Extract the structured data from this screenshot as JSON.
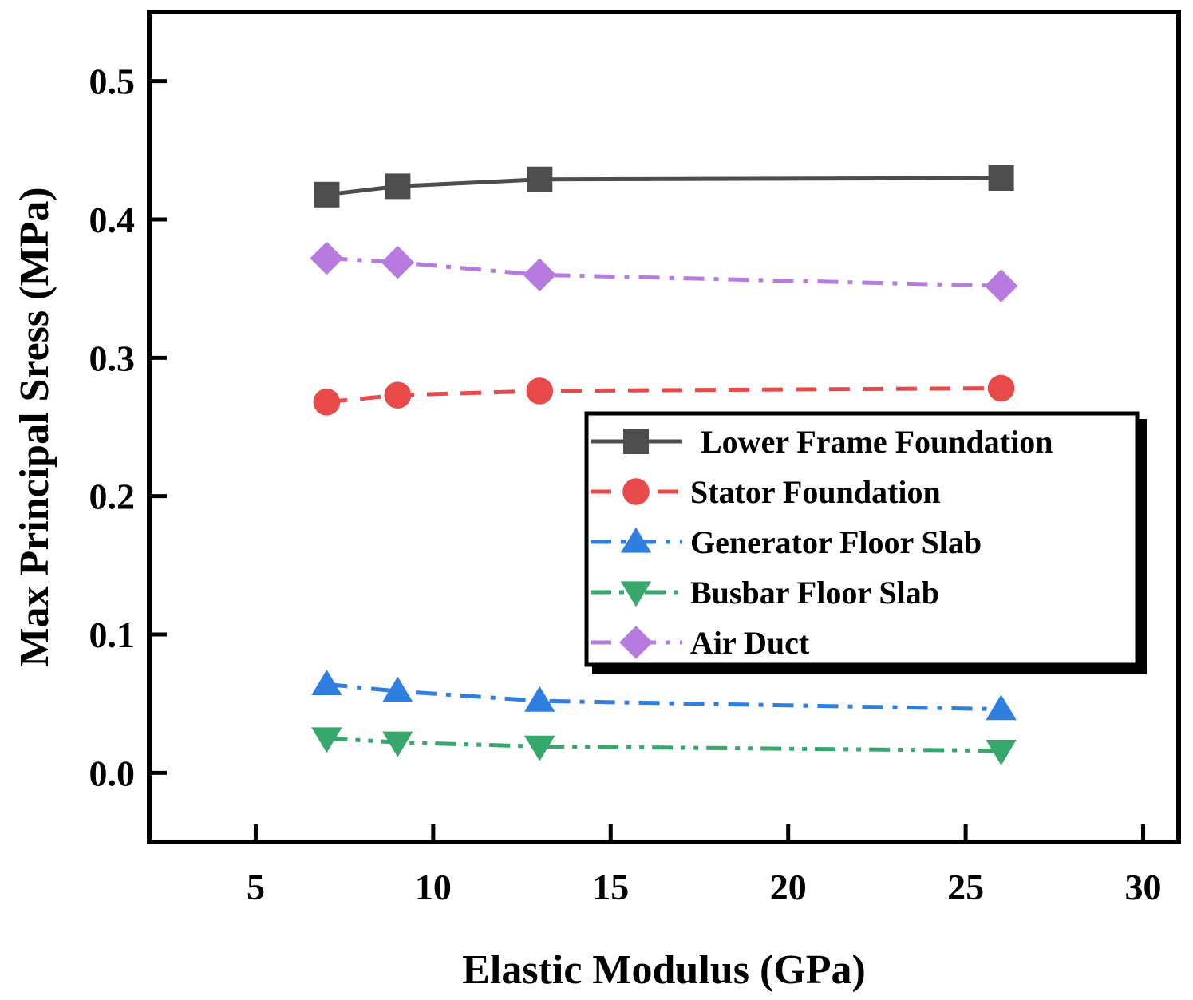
{
  "chart_data": {
    "type": "line",
    "title": "",
    "xlabel": "Elastic Modulus (GPa)",
    "ylabel": "Max Principal Sress (MPa)",
    "xlim": [
      2,
      31
    ],
    "ylim": [
      -0.05,
      0.55
    ],
    "xticks": [
      5,
      10,
      15,
      20,
      25,
      30
    ],
    "yticks": [
      0.0,
      0.1,
      0.2,
      0.3,
      0.4,
      0.5
    ],
    "xtick_labels": [
      "5",
      "10",
      "15",
      "20",
      "25",
      "30"
    ],
    "ytick_labels": [
      "0.0",
      "0.1",
      "0.2",
      "0.3",
      "0.4",
      "0.5"
    ],
    "legend_position": "center-right",
    "x": [
      7,
      9,
      13,
      26
    ],
    "series": [
      {
        "name": "Lower Frame Foundation",
        "values": [
          0.418,
          0.424,
          0.429,
          0.43
        ],
        "color": "#4d4d4d",
        "marker": "square",
        "dash": "solid"
      },
      {
        "name": "Stator Foundation",
        "values": [
          0.268,
          0.273,
          0.276,
          0.278
        ],
        "color": "#e84a4a",
        "marker": "circle",
        "dash": "dash"
      },
      {
        "name": "Generator Floor Slab",
        "values": [
          0.064,
          0.059,
          0.052,
          0.046
        ],
        "color": "#2f7fe0",
        "marker": "triangle-up",
        "dash": "dashdot"
      },
      {
        "name": "Busbar Floor Slab",
        "values": [
          0.025,
          0.022,
          0.019,
          0.016
        ],
        "color": "#36a86b",
        "marker": "triangle-down",
        "dash": "dashdotdot"
      },
      {
        "name": "Air Duct",
        "values": [
          0.372,
          0.369,
          0.36,
          0.352
        ],
        "color": "#b77be0",
        "marker": "diamond",
        "dash": "dashdot"
      }
    ]
  }
}
